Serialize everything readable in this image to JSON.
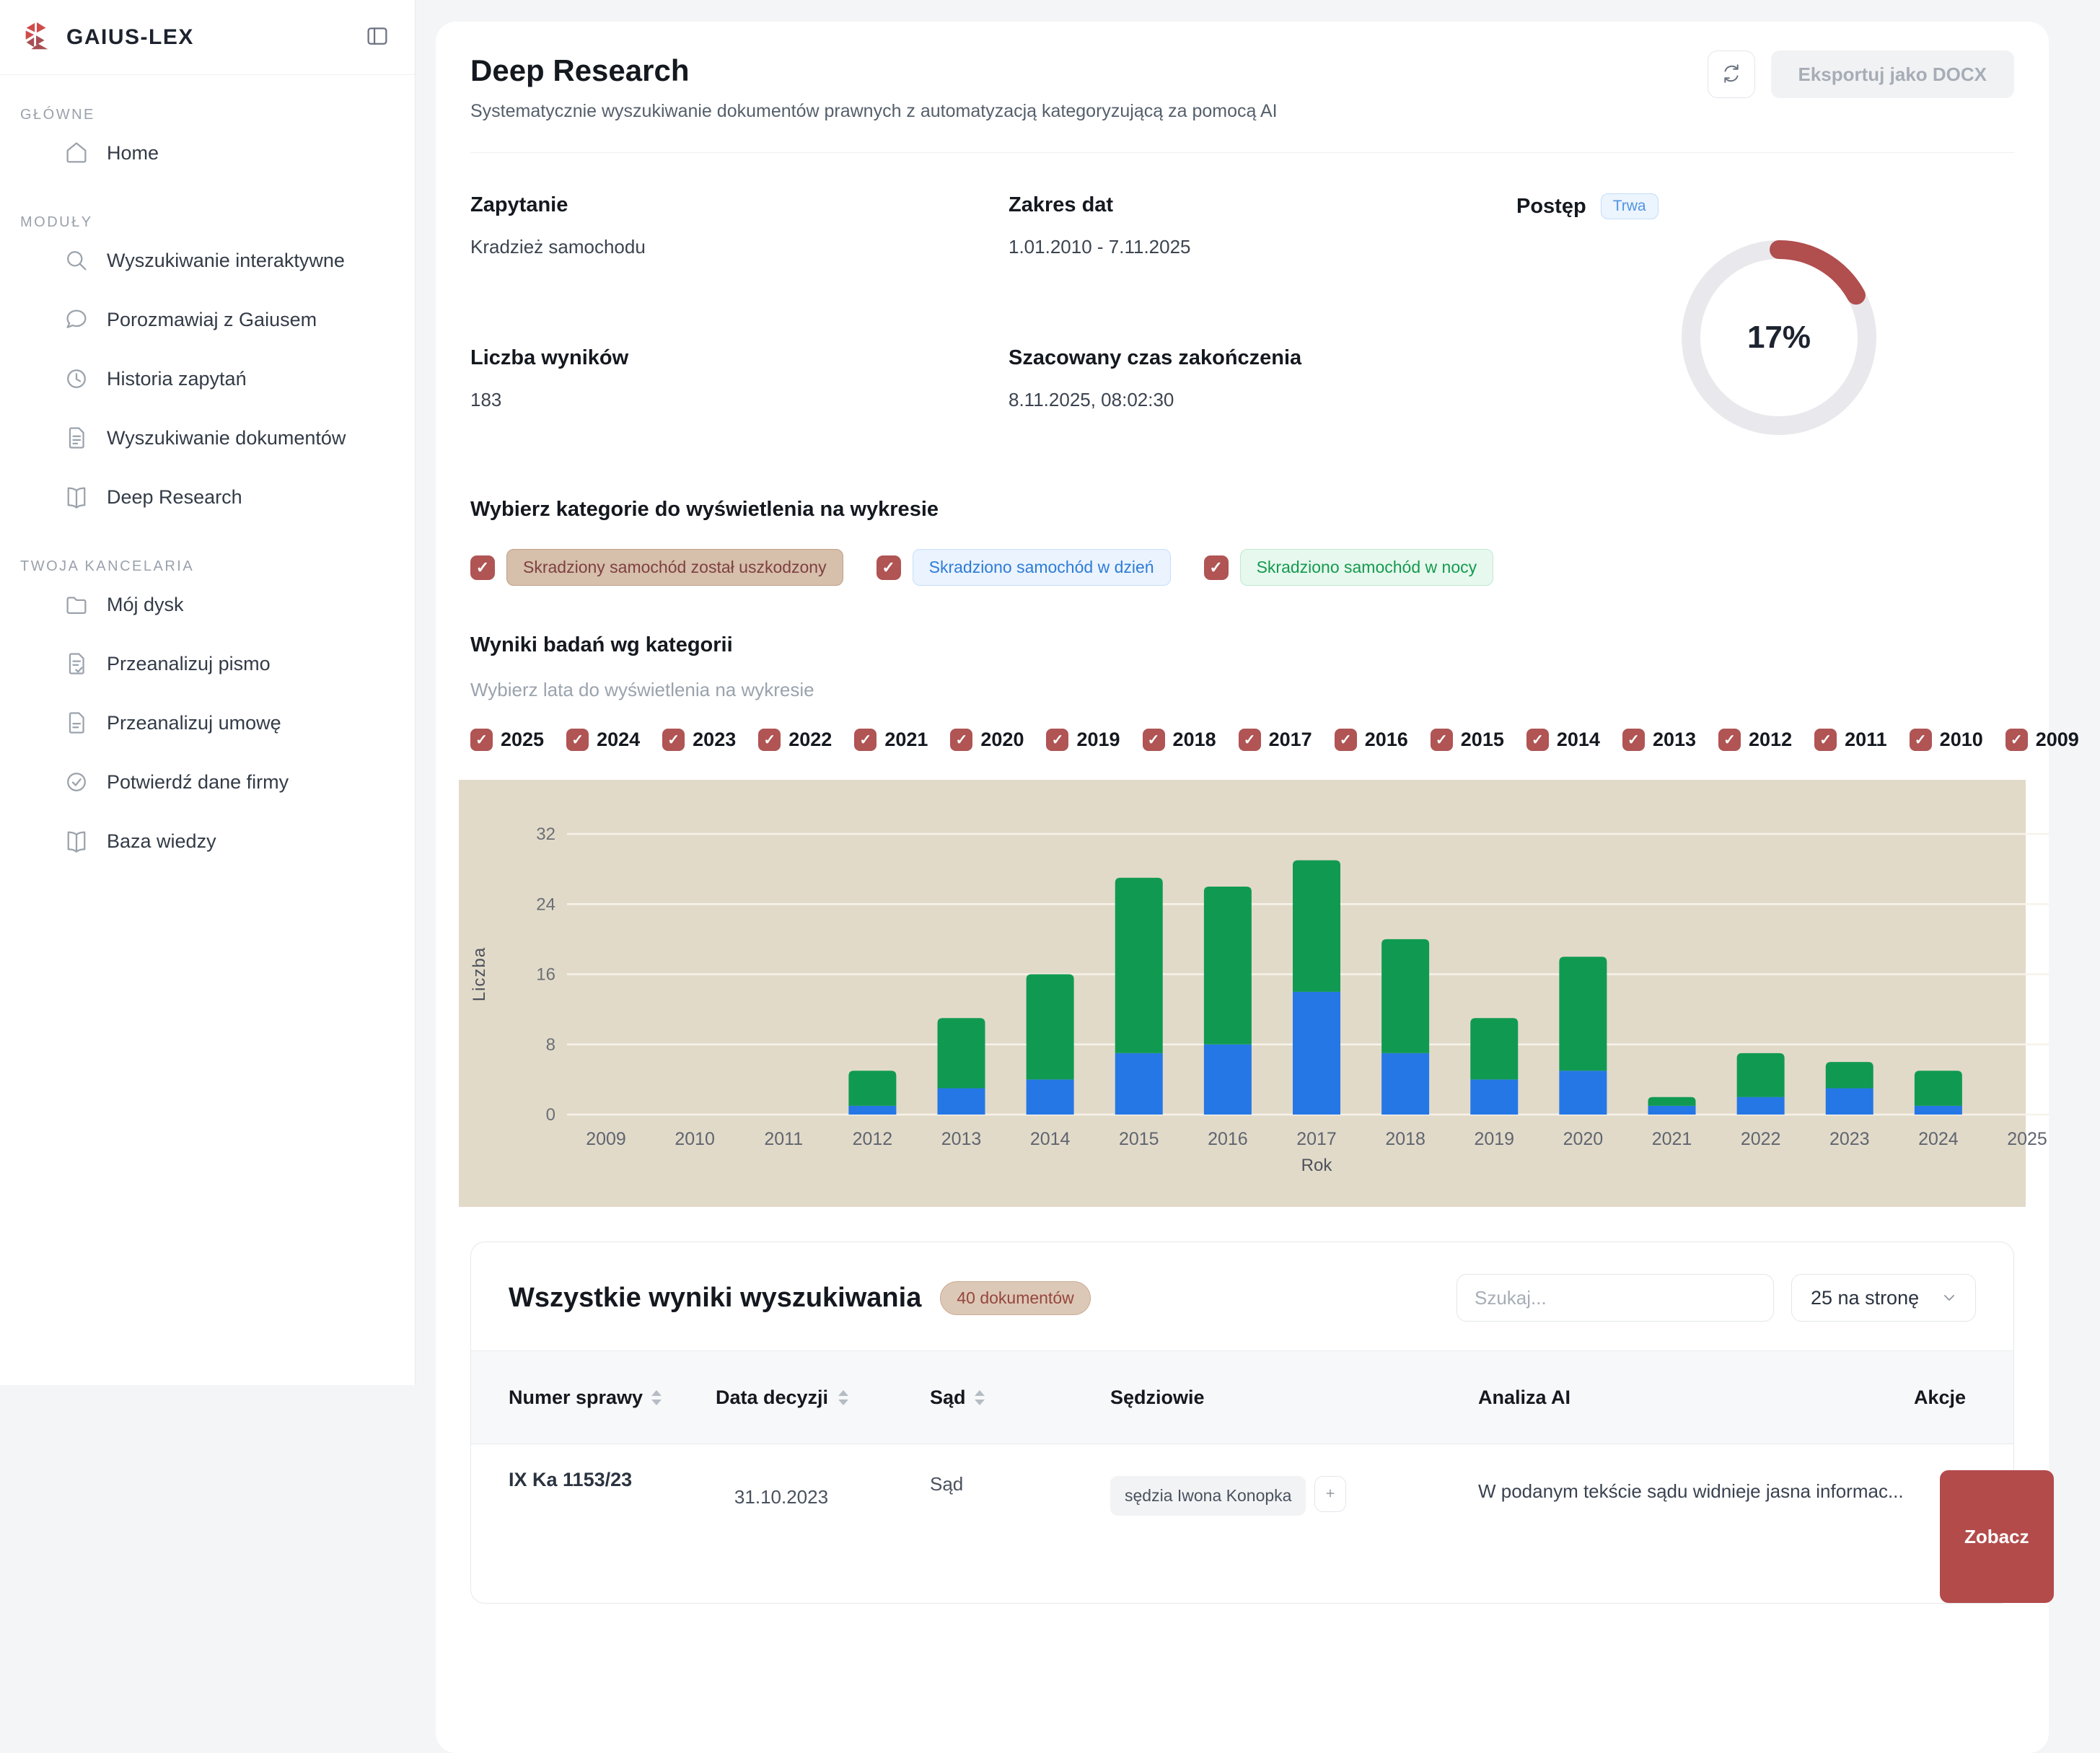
{
  "brand": {
    "name": "GAIUS-LEX"
  },
  "sidebar": {
    "sections": [
      {
        "label": "GŁÓWNE",
        "items": [
          {
            "label": "Home",
            "icon": "home"
          }
        ]
      },
      {
        "label": "MODUŁY",
        "items": [
          {
            "label": "Wyszukiwanie interaktywne",
            "icon": "search"
          },
          {
            "label": "Porozmawiaj z Gaiusem",
            "icon": "chat"
          },
          {
            "label": "Historia zapytań",
            "icon": "clock"
          },
          {
            "label": "Wyszukiwanie dokumentów",
            "icon": "file-text"
          },
          {
            "label": "Deep Research",
            "icon": "book-open"
          }
        ]
      },
      {
        "label": "TWOJA KANCELARIA",
        "items": [
          {
            "label": "Mój dysk",
            "icon": "folder"
          },
          {
            "label": "Przeanalizuj pismo",
            "icon": "file-check"
          },
          {
            "label": "Przeanalizuj umowę",
            "icon": "file"
          },
          {
            "label": "Potwierdź dane firmy",
            "icon": "check-circle"
          },
          {
            "label": "Baza wiedzy",
            "icon": "book-open"
          }
        ]
      }
    ]
  },
  "header": {
    "title": "Deep Research",
    "subtitle": "Systematycznie wyszukiwanie dokumentów prawnych z automatyzacją kategoryzującą za pomocą AI",
    "export_label": "Eksportuj jako DOCX"
  },
  "info": {
    "query_label": "Zapytanie",
    "query": "Kradzież samochodu",
    "range_label": "Zakres dat",
    "range": "1.01.2010 - 7.11.2025",
    "results_label": "Liczba wyników",
    "results": "183",
    "eta_label": "Szacowany czas zakończenia",
    "eta": "8.11.2025, 08:02:30"
  },
  "progress": {
    "label": "Postęp",
    "status": "Trwa",
    "percent": 17,
    "percent_label": "17%",
    "arc_color": "#b14e4e",
    "track_color": "#e9e9ed"
  },
  "categories_section": {
    "heading": "Wybierz kategorie do wyświetlenia na wykresie",
    "items": [
      {
        "label": "Skradziony samochód został uszkodzony",
        "bg": "#d6bfab",
        "border": "#c0a189",
        "color": "#7e4040",
        "checked": true
      },
      {
        "label": "Skradziono samochód w dzień",
        "bg": "#eaf3fe",
        "border": "#c8dffb",
        "color": "#2e7cd6",
        "checked": true
      },
      {
        "label": "Skradziono samochód w nocy",
        "bg": "#e7f8ee",
        "border": "#bfe9cf",
        "color": "#149a4e",
        "checked": true
      }
    ]
  },
  "years_section": {
    "heading": "Wyniki badań wg kategorii",
    "subheading": "Wybierz lata do wyświetlenia na wykresie",
    "years": [
      "2025",
      "2024",
      "2023",
      "2022",
      "2021",
      "2020",
      "2019",
      "2018",
      "2017",
      "2016",
      "2015",
      "2014",
      "2013",
      "2012",
      "2011",
      "2010",
      "2009"
    ]
  },
  "chart_data": {
    "type": "bar",
    "stacked": true,
    "title": "Wyniki badań wg kategorii",
    "xlabel": "Rok",
    "ylabel": "Liczba",
    "ylim": [
      0,
      32
    ],
    "ytick_step": 8,
    "grid": true,
    "background": "#e2dac9",
    "grid_color": "#f6f3ea",
    "categories": [
      "2009",
      "2010",
      "2011",
      "2012",
      "2013",
      "2014",
      "2015",
      "2016",
      "2017",
      "2018",
      "2019",
      "2020",
      "2021",
      "2022",
      "2023",
      "2024",
      "2025"
    ],
    "series": [
      {
        "name": "Skradziony samochód został uszkodzony",
        "color": "#c9a27f",
        "values": [
          0,
          0,
          0,
          0,
          0,
          0,
          0,
          0,
          0,
          0,
          0,
          0,
          0,
          0,
          0,
          0,
          0
        ]
      },
      {
        "name": "Skradziono samochód w dzień",
        "color": "#2577e5",
        "values": [
          0,
          0,
          0,
          1,
          3,
          4,
          7,
          8,
          14,
          7,
          4,
          5,
          1,
          2,
          3,
          1,
          0
        ]
      },
      {
        "name": "Skradziono samochód w nocy",
        "color": "#109a51",
        "values": [
          0,
          0,
          0,
          4,
          8,
          12,
          20,
          18,
          15,
          13,
          7,
          13,
          1,
          5,
          3,
          4,
          0
        ]
      }
    ],
    "totals": [
      0,
      0,
      0,
      5,
      11,
      16,
      27,
      26,
      29,
      20,
      11,
      18,
      2,
      7,
      6,
      5,
      0
    ]
  },
  "results": {
    "title": "Wszystkie wyniki wyszukiwania",
    "count_badge": "40 dokumentów",
    "search_placeholder": "Szukaj...",
    "page_size": "25 na stronę",
    "columns": [
      {
        "label": "Numer sprawy",
        "sortable": true
      },
      {
        "label": "Data decyzji",
        "sortable": true
      },
      {
        "label": "Sąd",
        "sortable": true
      },
      {
        "label": "Sędziowie",
        "sortable": false
      },
      {
        "label": "Analiza AI",
        "sortable": false
      },
      {
        "label": "Akcje",
        "sortable": false
      }
    ],
    "rows": [
      {
        "case_number": "IX Ka 1153/23",
        "date": "31.10.2023",
        "court": "Sąd",
        "judges": [
          "sędzia Iwona Konopka"
        ],
        "ai_analysis": "W podanym tekście sądu widnieje jasna informac...",
        "action_label": "Zobacz"
      }
    ]
  }
}
